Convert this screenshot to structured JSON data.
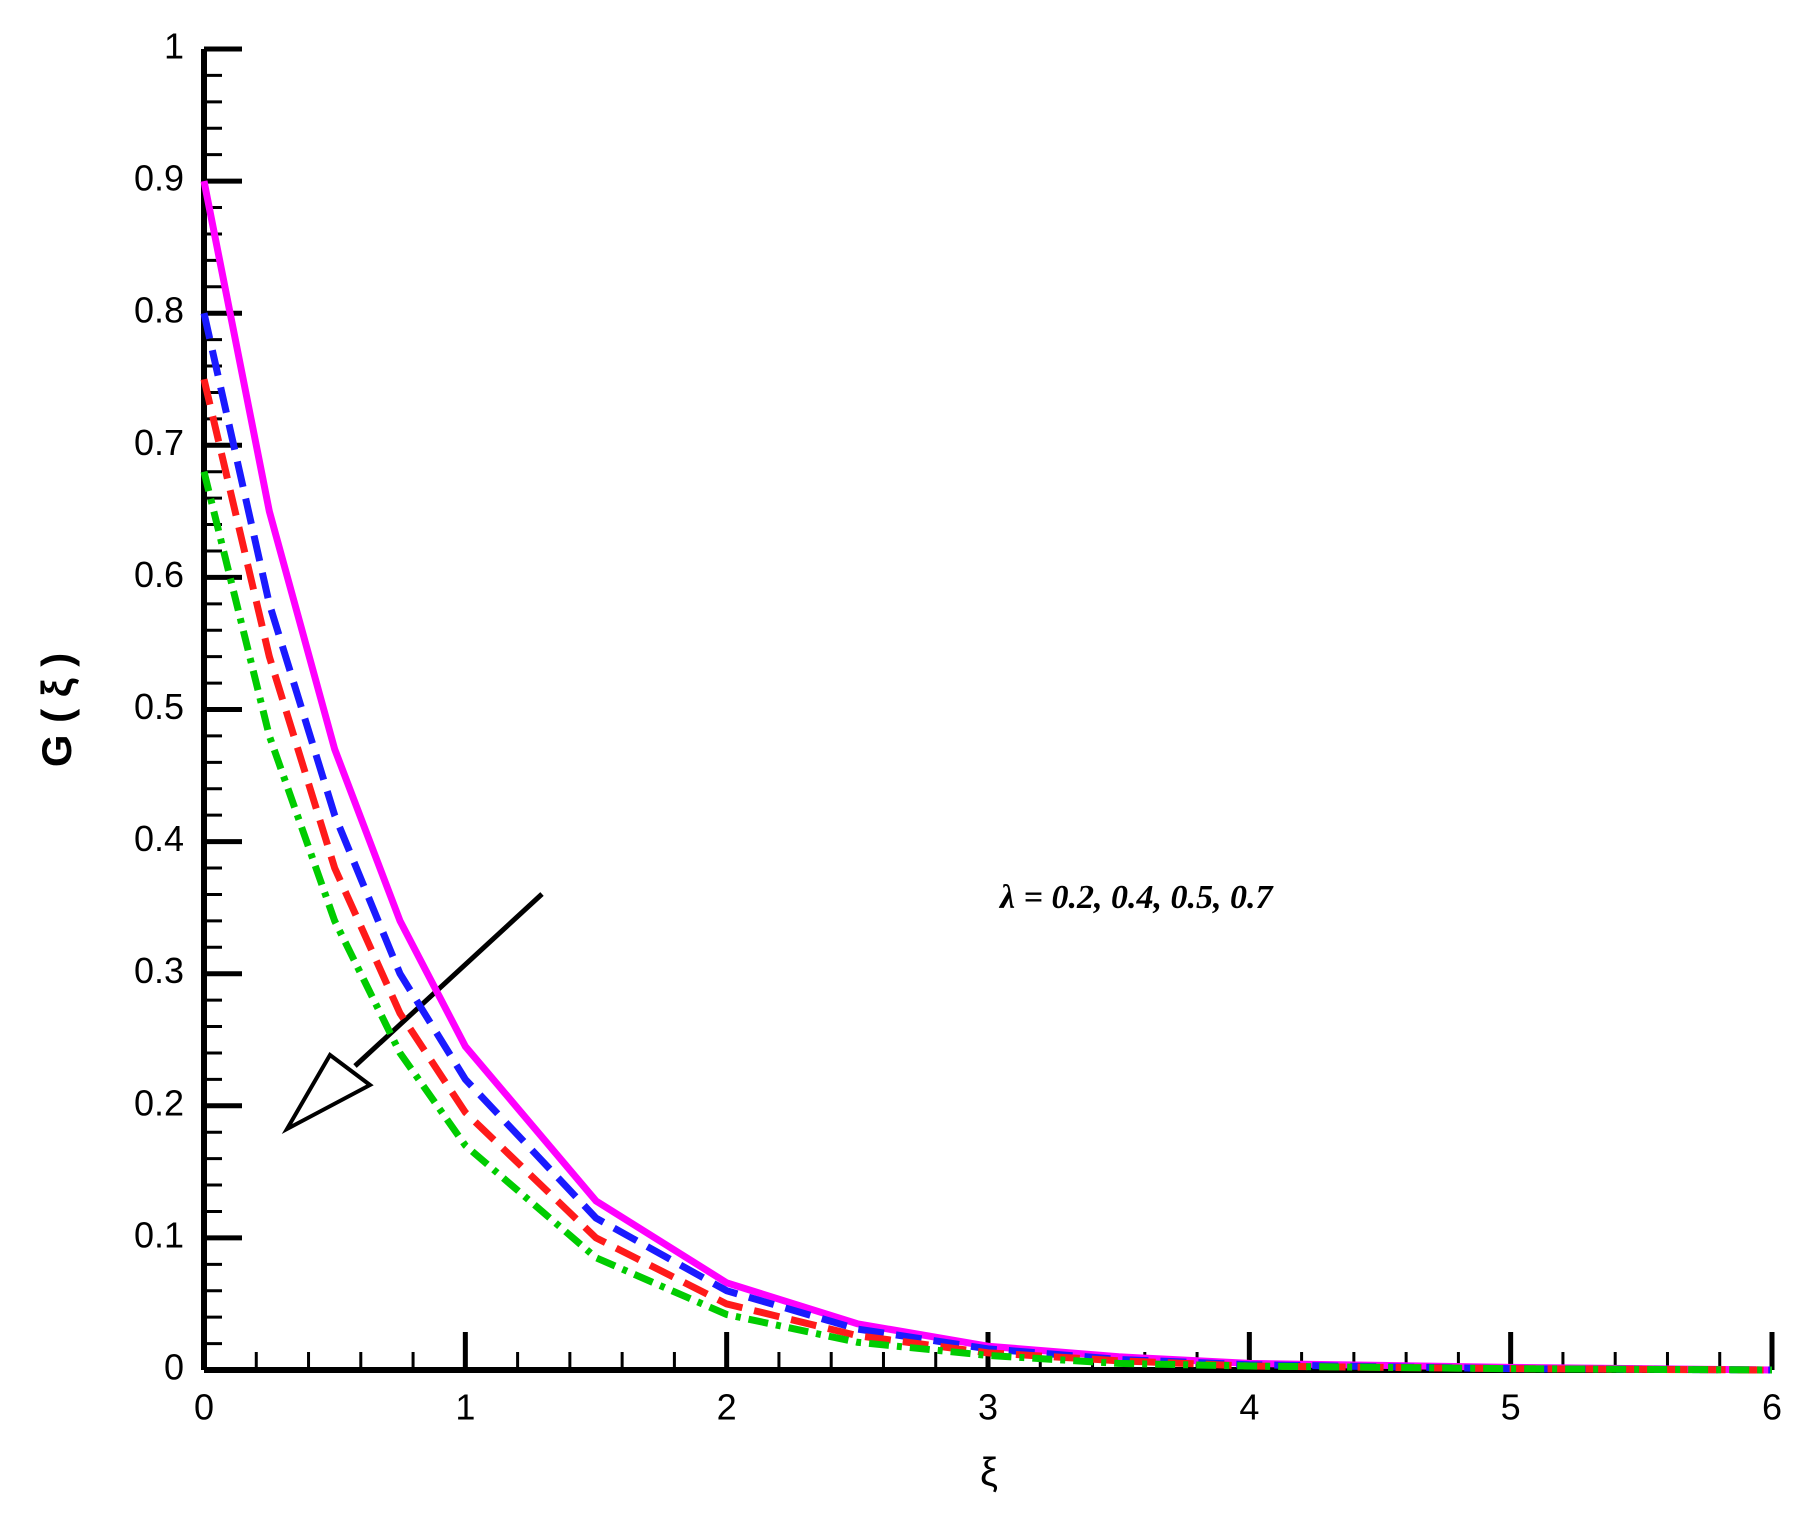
{
  "chart_data": {
    "type": "line",
    "x_label": "ξ",
    "y_label": "G ( ξ )",
    "annotation": "λ = 0.2, 0.4, 0.5, 0.7",
    "x": [
      0,
      0.25,
      0.5,
      0.75,
      1,
      1.5,
      2,
      2.5,
      3,
      3.5,
      4,
      5,
      6
    ],
    "series": [
      {
        "color": "#ff00ff",
        "dash": "solid",
        "values": [
          0.9,
          0.65,
          0.47,
          0.34,
          0.245,
          0.128,
          0.066,
          0.035,
          0.018,
          0.01,
          0.005,
          0.002,
          0
        ]
      },
      {
        "color": "#1a1aff",
        "dash": "dashed",
        "values": [
          0.8,
          0.58,
          0.42,
          0.3,
          0.22,
          0.115,
          0.06,
          0.031,
          0.016,
          0.008,
          0.004,
          0.001,
          0
        ]
      },
      {
        "color": "#ff1a1a",
        "dash": "dashed",
        "values": [
          0.75,
          0.54,
          0.38,
          0.27,
          0.195,
          0.1,
          0.05,
          0.026,
          0.013,
          0.007,
          0.003,
          0.001,
          0
        ]
      },
      {
        "color": "#00cc00",
        "dash": "dashdot",
        "values": [
          0.68,
          0.48,
          0.34,
          0.24,
          0.17,
          0.085,
          0.042,
          0.021,
          0.011,
          0.005,
          0.003,
          0.001,
          0
        ]
      }
    ],
    "xlim": [
      0,
      6
    ],
    "xticks": [
      0,
      1,
      2,
      3,
      4,
      5,
      6
    ],
    "ylim": [
      0,
      1
    ],
    "yticks": [
      0,
      0.1,
      0.2,
      0.3,
      0.4,
      0.5,
      0.6,
      0.7,
      0.8,
      0.9,
      1
    ]
  }
}
